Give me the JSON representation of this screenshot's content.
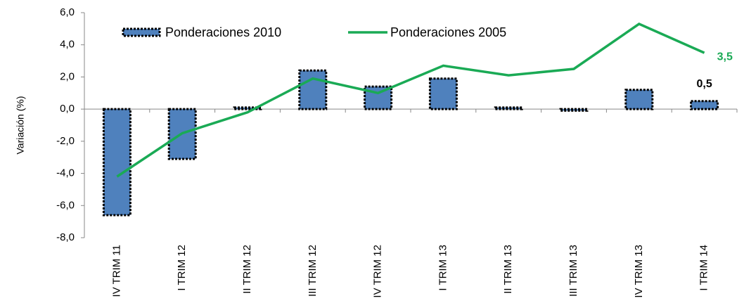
{
  "chart_data": {
    "type": "bar-line",
    "y_label": "Variación (%)",
    "categories": [
      "IV TRIM 11",
      "I TRIM 12",
      "II TRIM 12",
      "III TRIM 12",
      "IV TRIM 12",
      "I TRIM 13",
      "II TRIM 13",
      "III TRIM 13",
      "IV TRIM 13",
      "I TRIM 14"
    ],
    "series": [
      {
        "name": "Ponderaciones 2010",
        "type": "bar",
        "color": "#4f81bd",
        "values": [
          -6.6,
          -3.1,
          0.1,
          2.4,
          1.4,
          1.9,
          0.1,
          -0.1,
          1.2,
          0.5
        ],
        "value_labels": [
          null,
          null,
          null,
          null,
          null,
          null,
          null,
          null,
          null,
          "0,5"
        ]
      },
      {
        "name": "Ponderaciones 2005",
        "type": "line",
        "color": "#1aaa55",
        "values": [
          -4.2,
          -1.5,
          -0.2,
          1.9,
          1.0,
          2.7,
          2.1,
          2.5,
          5.3,
          3.5
        ],
        "value_labels": [
          null,
          null,
          null,
          null,
          null,
          null,
          null,
          null,
          null,
          "3,5"
        ]
      }
    ],
    "ylim": [
      -8,
      6
    ],
    "yticks": [
      {
        "value": -8,
        "label": "-8,0"
      },
      {
        "value": -6,
        "label": "-6,0"
      },
      {
        "value": -4,
        "label": "-4,0"
      },
      {
        "value": -2,
        "label": "-2,0"
      },
      {
        "value": 0,
        "label": "0,0"
      },
      {
        "value": 2,
        "label": "2,0"
      },
      {
        "value": 4,
        "label": "4,0"
      },
      {
        "value": 6,
        "label": "6,0"
      }
    ],
    "grid": false
  }
}
